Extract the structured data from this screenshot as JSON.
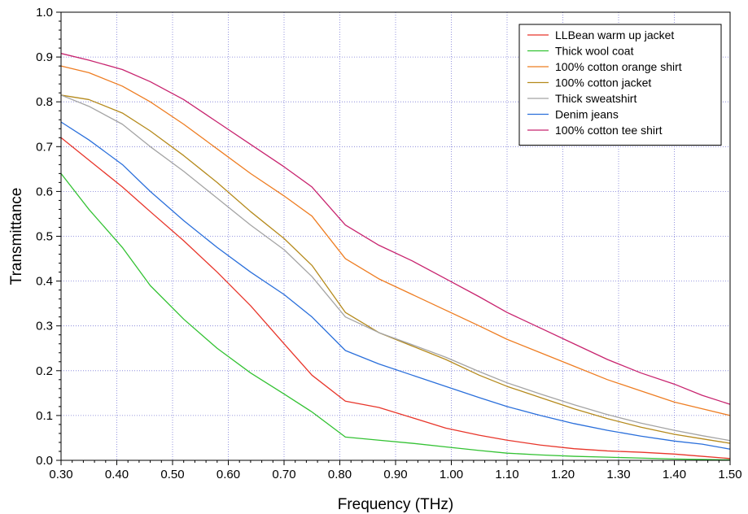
{
  "chart_data": {
    "type": "line",
    "title": "",
    "xlabel": "Frequency (THz)",
    "ylabel": "Transmittance",
    "xlim": [
      0.3,
      1.5
    ],
    "ylim": [
      0.0,
      1.0
    ],
    "x_ticks": [
      0.3,
      0.4,
      0.5,
      0.6,
      0.7,
      0.8,
      0.9,
      1.0,
      1.1,
      1.2,
      1.3,
      1.4,
      1.5
    ],
    "x_tick_labels": [
      "0.30",
      "0.40",
      "0.50",
      "0.60",
      "0.70",
      "0.80",
      "0.90",
      "1.00",
      "1.10",
      "1.20",
      "1.30",
      "1.40",
      "1.50"
    ],
    "y_ticks": [
      0.0,
      0.1,
      0.2,
      0.3,
      0.4,
      0.5,
      0.6,
      0.7,
      0.8,
      0.9,
      1.0
    ],
    "y_tick_labels": [
      "0.0",
      "0.1",
      "0.2",
      "0.3",
      "0.4",
      "0.5",
      "0.6",
      "0.7",
      "0.8",
      "0.9",
      "1.0"
    ],
    "grid": true,
    "legend_position": "top-right",
    "series": [
      {
        "name": "LLBean warm up jacket",
        "color": "#e8352a",
        "x": [
          0.3,
          0.35,
          0.41,
          0.46,
          0.52,
          0.58,
          0.64,
          0.7,
          0.75,
          0.81,
          0.87,
          0.93,
          0.99,
          1.05,
          1.1,
          1.16,
          1.22,
          1.28,
          1.34,
          1.4,
          1.45,
          1.5
        ],
        "y": [
          0.72,
          0.67,
          0.61,
          0.555,
          0.49,
          0.42,
          0.345,
          0.26,
          0.19,
          0.132,
          0.118,
          0.095,
          0.072,
          0.056,
          0.045,
          0.034,
          0.026,
          0.021,
          0.018,
          0.014,
          0.009,
          0.004
        ]
      },
      {
        "name": "Thick wool coat",
        "color": "#33c233",
        "x": [
          0.3,
          0.35,
          0.41,
          0.46,
          0.52,
          0.58,
          0.64,
          0.7,
          0.75,
          0.81,
          0.87,
          0.93,
          0.99,
          1.05,
          1.1,
          1.16,
          1.22,
          1.28,
          1.34,
          1.4,
          1.45,
          1.5
        ],
        "y": [
          0.64,
          0.56,
          0.475,
          0.39,
          0.315,
          0.25,
          0.195,
          0.148,
          0.108,
          0.052,
          0.045,
          0.038,
          0.03,
          0.022,
          0.016,
          0.012,
          0.009,
          0.007,
          0.005,
          0.003,
          0.002,
          0.001
        ]
      },
      {
        "name": "100% cotton orange shirt",
        "color": "#ee7d22",
        "x": [
          0.3,
          0.35,
          0.41,
          0.46,
          0.52,
          0.58,
          0.64,
          0.7,
          0.75,
          0.81,
          0.87,
          0.93,
          0.99,
          1.05,
          1.1,
          1.16,
          1.22,
          1.28,
          1.34,
          1.4,
          1.45,
          1.5
        ],
        "y": [
          0.88,
          0.865,
          0.835,
          0.8,
          0.75,
          0.695,
          0.64,
          0.59,
          0.545,
          0.45,
          0.405,
          0.37,
          0.335,
          0.3,
          0.27,
          0.24,
          0.21,
          0.18,
          0.155,
          0.13,
          0.115,
          0.1
        ]
      },
      {
        "name": "100% cotton jacket",
        "color": "#b58a1c",
        "x": [
          0.3,
          0.35,
          0.41,
          0.46,
          0.52,
          0.58,
          0.64,
          0.7,
          0.75,
          0.81,
          0.87,
          0.93,
          0.99,
          1.05,
          1.1,
          1.16,
          1.22,
          1.28,
          1.34,
          1.4,
          1.45,
          1.5
        ],
        "y": [
          0.815,
          0.805,
          0.775,
          0.735,
          0.68,
          0.62,
          0.555,
          0.495,
          0.435,
          0.33,
          0.285,
          0.255,
          0.225,
          0.19,
          0.165,
          0.14,
          0.115,
          0.093,
          0.074,
          0.058,
          0.048,
          0.038
        ]
      },
      {
        "name": "Thick sweatshirt",
        "color": "#a4a4a4",
        "x": [
          0.3,
          0.35,
          0.41,
          0.46,
          0.52,
          0.58,
          0.64,
          0.7,
          0.75,
          0.81,
          0.87,
          0.93,
          0.99,
          1.05,
          1.1,
          1.16,
          1.22,
          1.28,
          1.34,
          1.4,
          1.45,
          1.5
        ],
        "y": [
          0.815,
          0.79,
          0.75,
          0.7,
          0.645,
          0.585,
          0.525,
          0.47,
          0.41,
          0.32,
          0.285,
          0.258,
          0.23,
          0.198,
          0.173,
          0.148,
          0.124,
          0.102,
          0.083,
          0.067,
          0.055,
          0.044
        ]
      },
      {
        "name": "Denim jeans",
        "color": "#2a6fdb",
        "x": [
          0.3,
          0.35,
          0.41,
          0.46,
          0.52,
          0.58,
          0.64,
          0.7,
          0.75,
          0.81,
          0.87,
          0.93,
          0.99,
          1.05,
          1.1,
          1.16,
          1.22,
          1.28,
          1.34,
          1.4,
          1.45,
          1.5
        ],
        "y": [
          0.755,
          0.715,
          0.66,
          0.6,
          0.535,
          0.475,
          0.42,
          0.37,
          0.32,
          0.245,
          0.215,
          0.19,
          0.165,
          0.14,
          0.12,
          0.1,
          0.082,
          0.067,
          0.054,
          0.043,
          0.036,
          0.025
        ]
      },
      {
        "name": "100% cotton tee shirt",
        "color": "#c8246f",
        "x": [
          0.3,
          0.35,
          0.41,
          0.46,
          0.52,
          0.58,
          0.64,
          0.7,
          0.75,
          0.81,
          0.87,
          0.93,
          0.99,
          1.05,
          1.1,
          1.16,
          1.22,
          1.28,
          1.34,
          1.4,
          1.45,
          1.5
        ],
        "y": [
          0.908,
          0.893,
          0.872,
          0.845,
          0.805,
          0.755,
          0.705,
          0.655,
          0.61,
          0.525,
          0.48,
          0.445,
          0.405,
          0.365,
          0.33,
          0.295,
          0.26,
          0.225,
          0.195,
          0.17,
          0.145,
          0.125
        ]
      }
    ]
  }
}
